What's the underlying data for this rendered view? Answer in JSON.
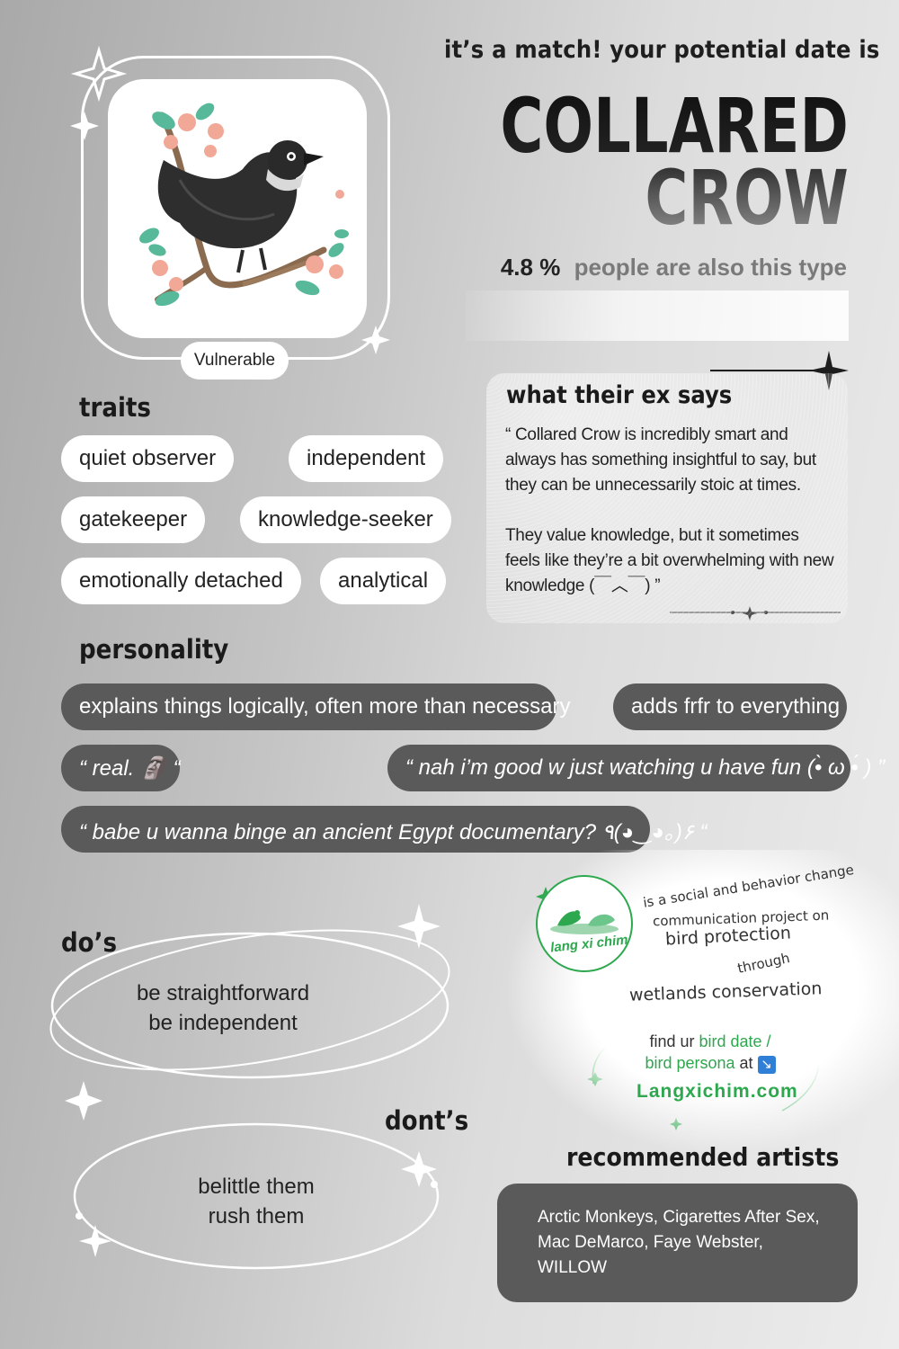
{
  "header": {
    "match_line": "it’s a match! your potential date is",
    "name_line1": "COLLARED",
    "name_line2": "CROW",
    "percent": "4.8 %",
    "percent_text": "people are also this type"
  },
  "profile": {
    "status": "Vulnerable"
  },
  "traits": {
    "heading": "traits",
    "items": [
      "quiet observer",
      "independent",
      "gatekeeper",
      "knowledge-seeker",
      "emotionally detached",
      "analytical"
    ]
  },
  "ex": {
    "heading": "what their ex says",
    "paragraph1": "“  Collared Crow is incredibly smart and always has something insightful to say, but they can be unnecessarily stoic at times.",
    "paragraph2": "They value knowledge, but it sometimes feels like they’re a bit overwhelming with new knowledge  (￣︿￣) ”"
  },
  "personality": {
    "heading": "personality",
    "items": [
      "explains things logically, often more than necessary",
      "adds frfr to everything",
      "“ real. 🗿 “",
      "“ nah i’m good w just watching u have fun  (•̀ ω •́ ) ”",
      "“ babe u wanna binge an ancient Egypt documentary?  ٩(◕‿◕｡)۶  “"
    ]
  },
  "dos": {
    "heading": "do’s",
    "line1": "be straightforward",
    "line2": "be independent"
  },
  "donts": {
    "heading": "dont’s",
    "line1": "belittle them",
    "line2": "rush them"
  },
  "project": {
    "logo_text": "lang xi chim",
    "line1": "is a social and behavior change",
    "line2": "communication project on",
    "line3": "bird protection",
    "line4": "through",
    "line5": "wetlands conservation",
    "find_prefix": "find ur",
    "find_link1": "bird date /",
    "find_link2": "bird persona",
    "find_suffix": "at",
    "arrow": "↘",
    "url": "Langxichim.com"
  },
  "artists": {
    "heading": "recommended artists",
    "line1": "Arctic Monkeys, Cigarettes After Sex,",
    "line2": "Mac DeMarco, Faye Webster, WILLOW"
  },
  "colors": {
    "dark_pill": "#5a5a5a",
    "accent_green": "#2ea84f",
    "white": "#ffffff"
  }
}
